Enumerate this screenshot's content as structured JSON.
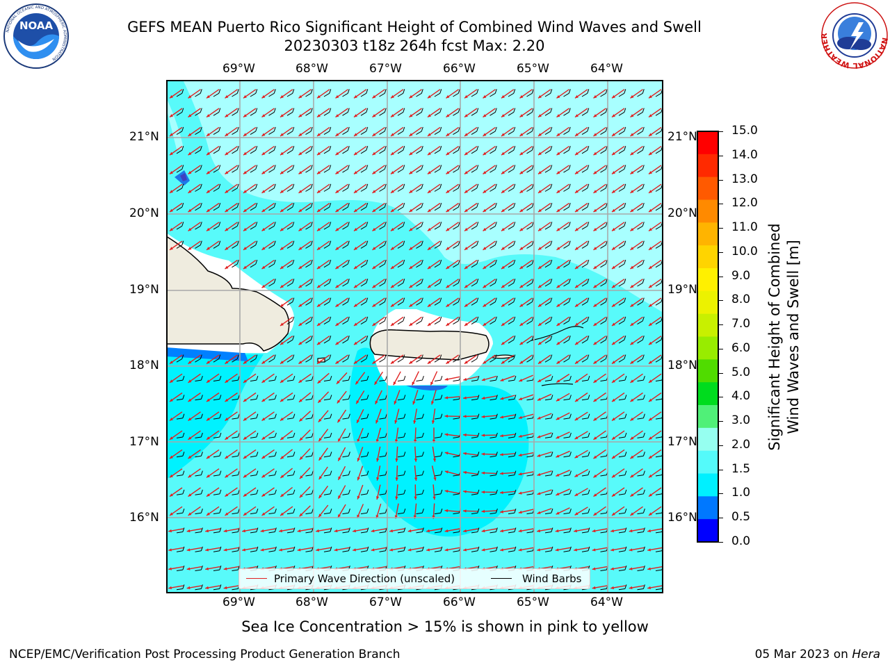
{
  "title": {
    "line1": "GEFS MEAN Puerto Rico Significant Height of Combined Wind Waves and Swell",
    "line2": "20230303 t18z 264h fcst   Max: 2.20"
  },
  "logos": {
    "left": {
      "text": "NOAA",
      "ring_text": "NATIONAL OCEANIC AND ATMOSPHERIC ADMINISTRATION",
      "icon": "noaa-logo"
    },
    "right": {
      "ring_text": "NATIONAL WEATHER SERVICE",
      "icon": "nws-logo"
    }
  },
  "map": {
    "lon_labels": [
      "69°W",
      "68°W",
      "67°W",
      "66°W",
      "65°W",
      "64°W"
    ],
    "lat_labels": [
      "21°N",
      "20°N",
      "19°N",
      "18°N",
      "17°N",
      "16°N"
    ],
    "legend": {
      "wave_label": "Primary Wave Direction (unscaled)",
      "barb_label": "Wind Barbs",
      "wave_color": "#e02020",
      "barb_color": "#000000"
    }
  },
  "colorbar": {
    "title_line1": "Significant Height of Combined",
    "title_line2": "Wind Waves and Swell [m]",
    "ticks": [
      "15.0",
      "14.0",
      "13.0",
      "12.0",
      "11.0",
      "10.0",
      "9.0",
      "8.0",
      "7.0",
      "6.0",
      "5.0",
      "4.0",
      "3.0",
      "2.0",
      "1.5",
      "1.0",
      "0.5",
      "0.0"
    ],
    "colors_top_to_bottom": [
      "#ff0000",
      "#ff2a00",
      "#ff5a00",
      "#ff8a00",
      "#ffb400",
      "#ffd400",
      "#fff000",
      "#ecf200",
      "#c8f000",
      "#98ec00",
      "#50dc00",
      "#00dc1e",
      "#50f078",
      "#96fff0",
      "#54fafa",
      "#00f0ff",
      "#0078ff",
      "#0000ff"
    ]
  },
  "fields": {
    "land": "#efecdf",
    "ocean_light": "#a8ffff",
    "ocean_mid": "#58fafa",
    "ocean_core": "#00f2ff",
    "deep_band": "#0080ff"
  },
  "footnote": "Sea Ice Concentration > 15% is shown in pink to yellow",
  "credit": "NCEP/EMC/Verification Post Processing Product Generation Branch",
  "date": {
    "text": "05 Mar 2023 on ",
    "machine": "Hera"
  }
}
